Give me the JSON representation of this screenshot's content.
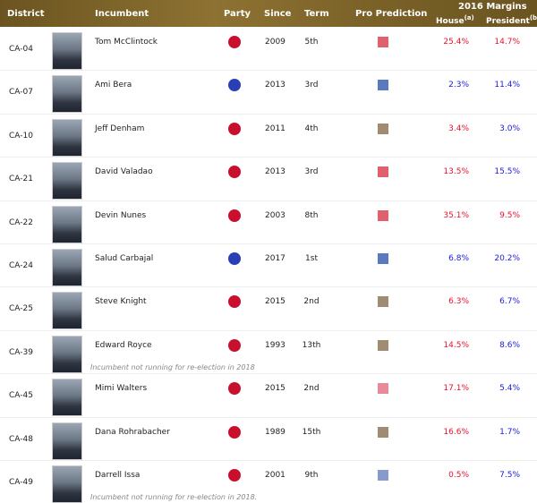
{
  "header": {
    "district": "District",
    "incumbent": "Incumbent",
    "party": "Party",
    "since": "Since",
    "term": "Term",
    "prediction": "Pro Prediction",
    "margins": "2016 Margins",
    "house": "House",
    "house_note": "(a)",
    "president": "President",
    "president_note": "(b)"
  },
  "table": {
    "rows": [
      {
        "district": "CA-04",
        "name": "Tom McClintock",
        "party_color": "#c8102e",
        "since": 2009,
        "term": "5th",
        "prediction_color": "#e06070",
        "house": "25.4%",
        "house_color": "#e8102e",
        "president": "14.7%",
        "president_color": "#e8102e"
      },
      {
        "district": "CA-07",
        "name": "Ami Bera",
        "party_color": "#2a3fb5",
        "since": 2013,
        "term": "3rd",
        "prediction_color": "#5b79bf",
        "house": "2.3%",
        "house_color": "#1a1adf",
        "president": "11.4%",
        "president_color": "#1a1adf"
      },
      {
        "district": "CA-10",
        "name": "Jeff Denham",
        "party_color": "#c8102e",
        "since": 2011,
        "term": "4th",
        "prediction_color": "#a08c72",
        "house": "3.4%",
        "house_color": "#e8102e",
        "president": "3.0%",
        "president_color": "#1a1adf"
      },
      {
        "district": "CA-21",
        "name": "David Valadao",
        "party_color": "#c8102e",
        "since": 2013,
        "term": "3rd",
        "prediction_color": "#e06070",
        "house": "13.5%",
        "house_color": "#e8102e",
        "president": "15.5%",
        "president_color": "#1a1adf"
      },
      {
        "district": "CA-22",
        "name": "Devin Nunes",
        "party_color": "#c8102e",
        "since": 2003,
        "term": "8th",
        "prediction_color": "#e06070",
        "house": "35.1%",
        "house_color": "#e8102e",
        "president": "9.5%",
        "president_color": "#e8102e"
      },
      {
        "district": "CA-24",
        "name": "Salud Carbajal",
        "party_color": "#2a3fb5",
        "since": 2017,
        "term": "1st",
        "prediction_color": "#5b79bf",
        "house": "6.8%",
        "house_color": "#1a1adf",
        "president": "20.2%",
        "president_color": "#1a1adf"
      },
      {
        "district": "CA-25",
        "name": "Steve Knight",
        "party_color": "#c8102e",
        "since": 2015,
        "term": "2nd",
        "prediction_color": "#a08c72",
        "house": "6.3%",
        "house_color": "#e8102e",
        "president": "6.7%",
        "president_color": "#1a1adf"
      },
      {
        "district": "CA-39",
        "name": "Edward Royce",
        "party_color": "#c8102e",
        "since": 1993,
        "term": "13th",
        "prediction_color": "#a08c72",
        "house": "14.5%",
        "house_color": "#e8102e",
        "president": "8.6%",
        "president_color": "#1a1adf",
        "note": "Incumbent not running for re-election in 2018"
      },
      {
        "district": "CA-45",
        "name": "Mimi Walters",
        "party_color": "#c8102e",
        "since": 2015,
        "term": "2nd",
        "prediction_color": "#e88a99",
        "house": "17.1%",
        "house_color": "#e8102e",
        "president": "5.4%",
        "president_color": "#1a1adf"
      },
      {
        "district": "CA-48",
        "name": "Dana Rohrabacher",
        "party_color": "#c8102e",
        "since": 1989,
        "term": "15th",
        "prediction_color": "#a08c72",
        "house": "16.6%",
        "house_color": "#e8102e",
        "president": "1.7%",
        "president_color": "#1a1adf"
      },
      {
        "district": "CA-49",
        "name": "Darrell Issa",
        "party_color": "#c8102e",
        "since": 2001,
        "term": "9th",
        "prediction_color": "#8899cc",
        "house": "0.5%",
        "house_color": "#e8102e",
        "president": "7.5%",
        "president_color": "#1a1adf",
        "note": "Incumbent not running for re-election in 2018."
      }
    ]
  }
}
